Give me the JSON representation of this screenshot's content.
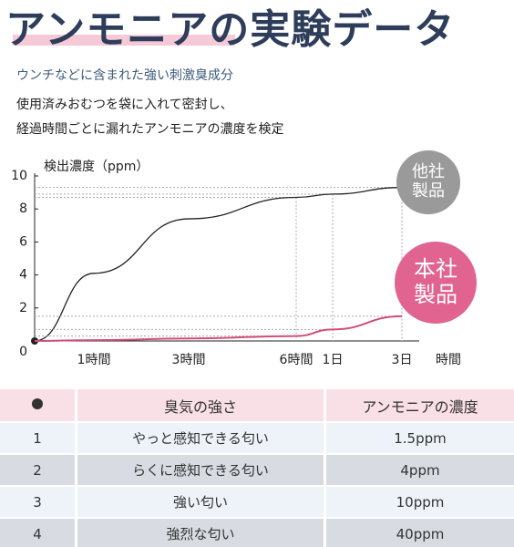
{
  "header": {
    "title": "アンモニアの実験データ",
    "subtitle": "ウンチなどに含まれた強い刺激臭成分",
    "description": [
      "使用済みおむつを袋に入れて密封し、",
      "経過時間ごとに漏れたアンモニアの濃度を検定"
    ]
  },
  "chart_data": {
    "type": "line",
    "y_label": "検出濃度（ppm）",
    "x_label": "時間",
    "categories": [
      null,
      "1時間",
      "3時間",
      "6時間",
      "1日",
      "3日"
    ],
    "series": [
      {
        "name": "他社製品",
        "color": "#222222",
        "label_color": "#9a9a9a",
        "values": [
          0,
          4.1,
          7.4,
          8.7,
          8.9,
          9.3
        ]
      },
      {
        "name": "本社製品",
        "color": "#cf4f7c",
        "label_color": "#e0648f",
        "values": [
          0,
          0.05,
          0.15,
          0.3,
          0.7,
          1.5
        ]
      }
    ],
    "ylim": [
      0,
      10
    ],
    "yticks": [
      0,
      2,
      4,
      6,
      8,
      10
    ]
  },
  "table": {
    "header": [
      "臭気の強さ",
      "アンモニアの濃度"
    ],
    "rows": [
      [
        "1",
        "やっと感知できる匂い",
        "1.5ppm"
      ],
      [
        "2",
        "らくに感知できる匂い",
        "4ppm"
      ],
      [
        "3",
        "強い匂い",
        "10ppm"
      ],
      [
        "4",
        "強烈な匂い",
        "40ppm"
      ]
    ]
  }
}
